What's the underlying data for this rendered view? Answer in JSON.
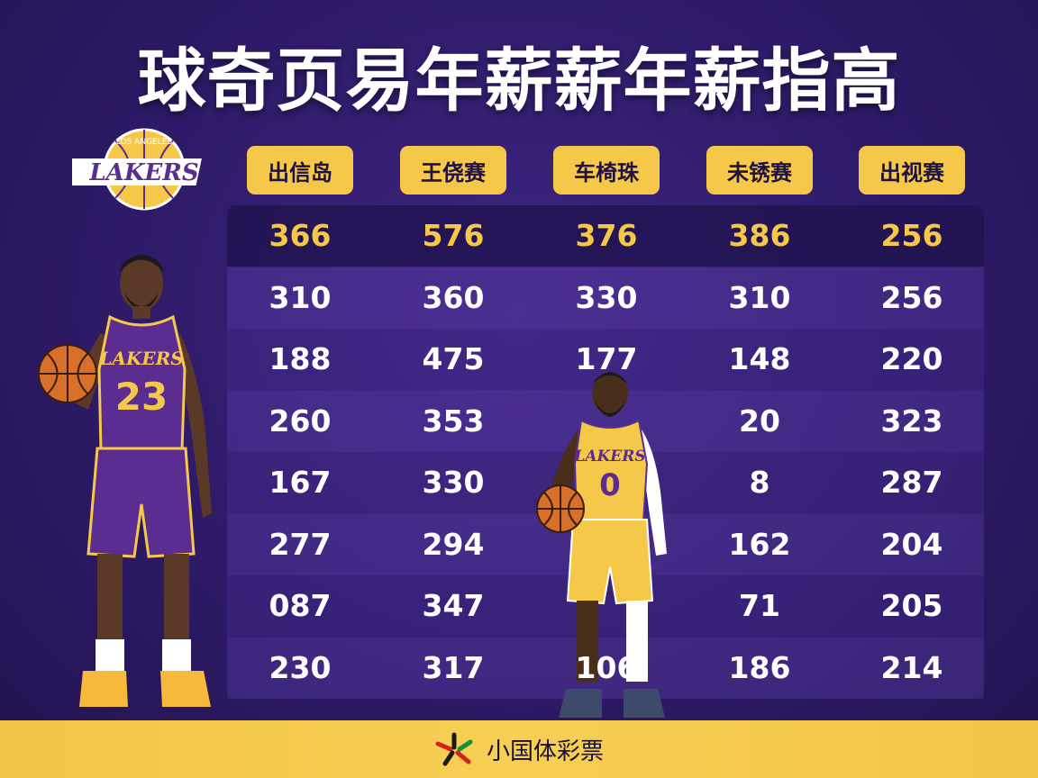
{
  "title": "球奇页易年薪薪年薪指高",
  "footer": {
    "brand": "小国体彩票"
  },
  "logo": {
    "text": "LAKERS",
    "arc_text": "LOS ANGELES"
  },
  "players": [
    {
      "team": "LAKERS",
      "number": "23",
      "jersey_color": "#5b2d90"
    },
    {
      "team": "LAKERS",
      "number": "0",
      "jersey_color": "#f6c84a"
    }
  ],
  "colors": {
    "accent": "#f6c84a",
    "background": "#2e1a68"
  },
  "chart_data": {
    "type": "table",
    "title": "球奇页易年薪薪年薪指高",
    "columns": [
      "出信岛",
      "王侥赛",
      "车椅珠",
      "未锈赛",
      "出视赛"
    ],
    "rows": [
      [
        "366",
        "576",
        "376",
        "386",
        "256"
      ],
      [
        "310",
        "360",
        "330",
        "310",
        "256"
      ],
      [
        "188",
        "475",
        "177",
        "148",
        "220"
      ],
      [
        "260",
        "353",
        "",
        "20",
        "323"
      ],
      [
        "167",
        "330",
        "",
        "8",
        "287"
      ],
      [
        "277",
        "294",
        "",
        "162",
        "204"
      ],
      [
        "087",
        "347",
        "",
        "71",
        "205"
      ],
      [
        "230",
        "317",
        "106",
        "186",
        "214"
      ]
    ],
    "highlight_row": 0
  }
}
